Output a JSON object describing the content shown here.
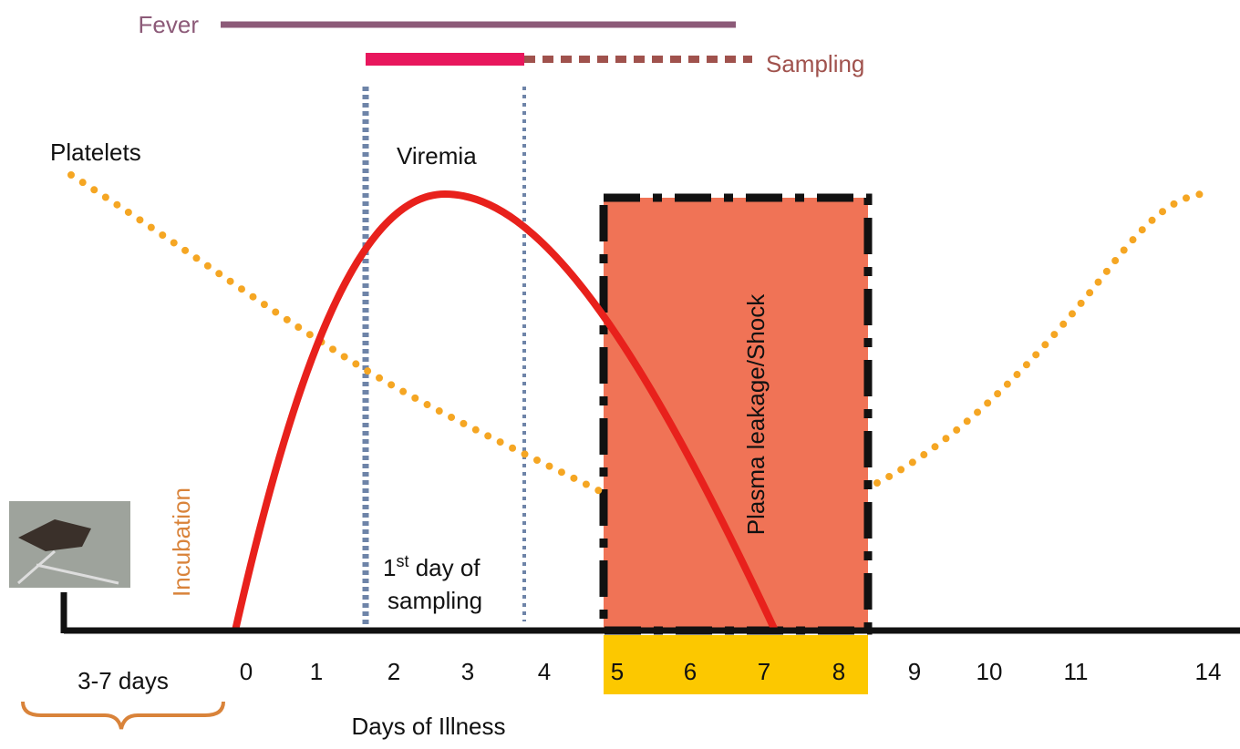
{
  "bars": {
    "fever": "Fever",
    "sampling": "Sampling"
  },
  "labels": {
    "platelets": "Platelets",
    "viremia": "Viremia",
    "incubation": "Incubation",
    "plasma": "Plasma leakage/Shock",
    "first_day": {
      "number": "1",
      "suffix": "st",
      "rest": " day of",
      "line2": "sampling"
    }
  },
  "axis": {
    "ticks": [
      "0",
      "1",
      "2",
      "3",
      "4",
      "5",
      "6",
      "7",
      "8",
      "9",
      "10",
      "11",
      "14"
    ],
    "title": "Days of Illness",
    "incubation_period": "3-7 days"
  }
}
